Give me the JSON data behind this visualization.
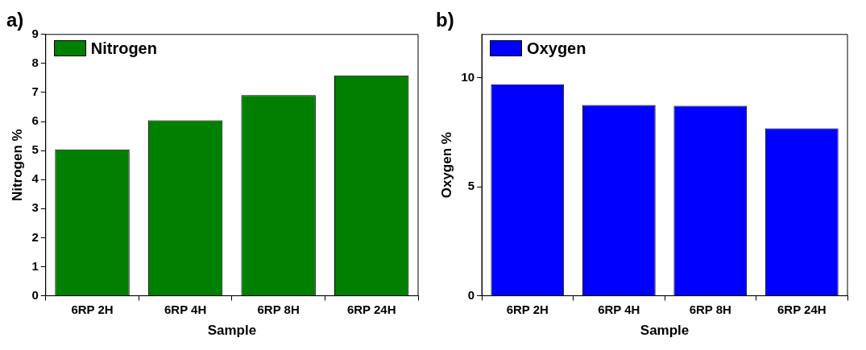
{
  "chart_data": [
    {
      "type": "bar",
      "title": "a)",
      "categories": [
        "6RP 2H",
        "6RP 4H",
        "6RP 8H",
        "6RP 24H"
      ],
      "xlabel": "Sample",
      "ylabel": "Nitrogen %",
      "ylim": [
        0,
        9
      ],
      "yticks": [
        0,
        1,
        2,
        3,
        4,
        5,
        6,
        7,
        8,
        9
      ],
      "legend": "top left",
      "grid": false,
      "series": [
        {
          "name": "Nitrogen",
          "color": "#007f00",
          "values": [
            5.04,
            6.04,
            6.91,
            7.59
          ]
        }
      ]
    },
    {
      "type": "bar",
      "title": "b)",
      "categories": [
        "6RP 2H",
        "6RP 4H",
        "6RP 8H",
        "6RP 24H"
      ],
      "xlabel": "Sample",
      "ylabel": "Oxygen %",
      "ylim": [
        0,
        12
      ],
      "yticks": [
        0,
        5,
        10
      ],
      "legend": "top left",
      "grid": false,
      "series": [
        {
          "name": "Oxygen",
          "color": "#0000ff",
          "values": [
            9.71,
            8.76,
            8.72,
            7.69
          ]
        }
      ]
    }
  ]
}
